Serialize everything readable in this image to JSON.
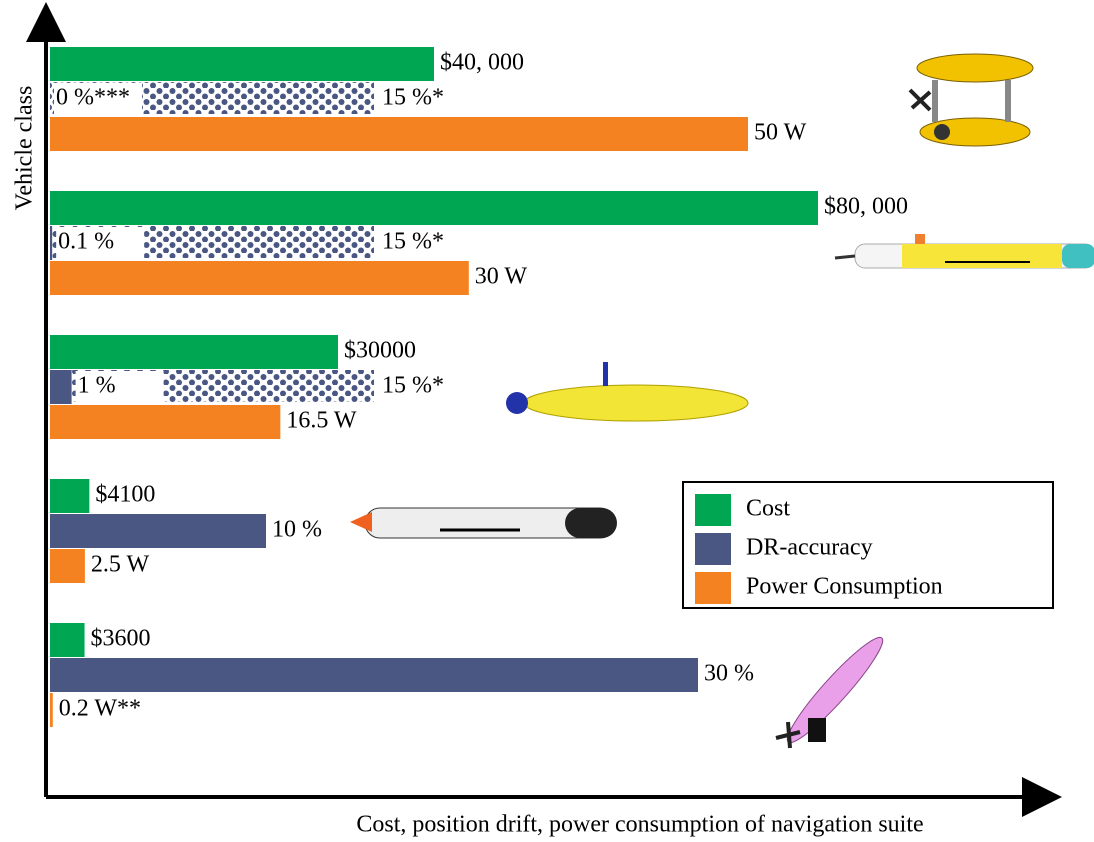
{
  "chart_data": {
    "type": "bar",
    "ylabel": "Vehicle class",
    "xlabel": "Cost, position drift, power consumption of navigation suite",
    "series": [
      {
        "name": "Cost",
        "color": "#00a651",
        "values": [
          40000,
          80000,
          30000,
          4100,
          3600
        ],
        "value_labels": [
          "$40, 000",
          "$80, 000",
          "$30000",
          "$4100",
          "$3600"
        ]
      },
      {
        "name": "DR-accuracy",
        "color": "#4a5783",
        "values": [
          0,
          0.1,
          1,
          10,
          30
        ],
        "value_labels": [
          "0 %***",
          "0.1 %",
          "1 %",
          "10 %",
          "30 %"
        ]
      },
      {
        "name": "Power Consumption",
        "color": "#f58220",
        "values": [
          50,
          30,
          16.5,
          2.5,
          0.2
        ],
        "value_labels": [
          "50 W",
          "30 W",
          "16.5 W",
          "2.5 W",
          "0.2 W**"
        ]
      }
    ],
    "dr_estimate": {
      "values": [
        15,
        15,
        15,
        null,
        null
      ],
      "value_labels": [
        "15 %*",
        "15 %*",
        "15 %*",
        null,
        null
      ]
    },
    "legend": "lower right"
  }
}
